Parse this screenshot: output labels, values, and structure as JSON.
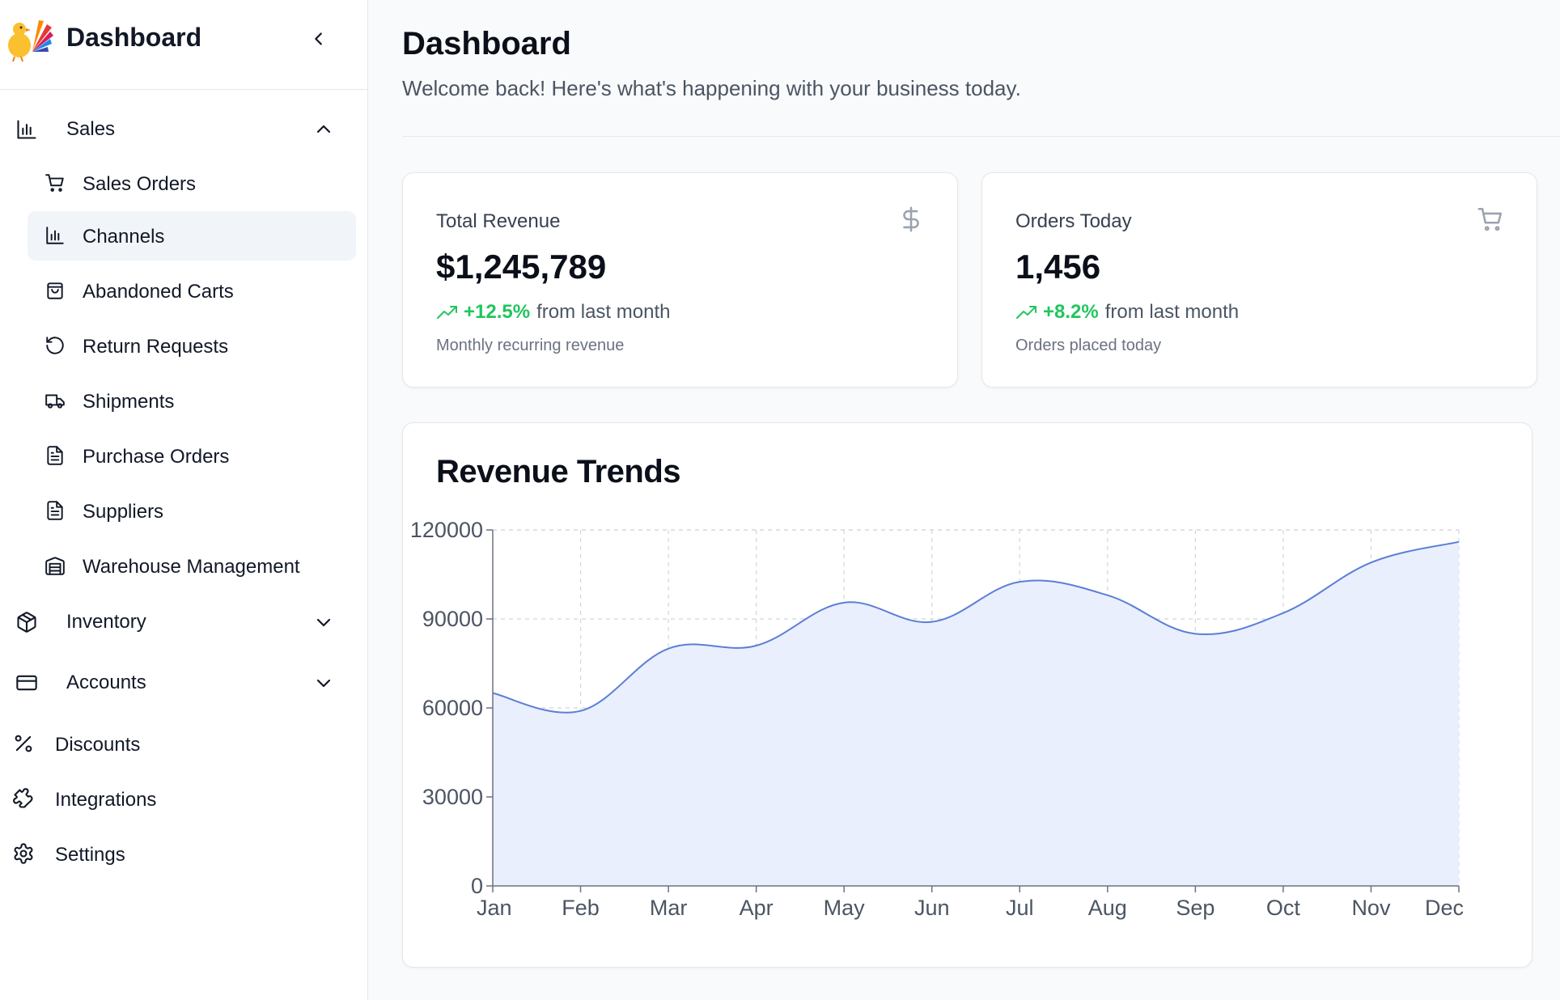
{
  "sidebar": {
    "title": "Dashboard",
    "groups": {
      "sales": {
        "label": "Sales",
        "items": [
          {
            "label": "Sales Orders",
            "icon": "cart-icon"
          },
          {
            "label": "Channels",
            "icon": "bar-chart-icon",
            "active": true
          },
          {
            "label": "Abandoned Carts",
            "icon": "bag-icon"
          },
          {
            "label": "Return Requests",
            "icon": "rotate-ccw-icon"
          },
          {
            "label": "Shipments",
            "icon": "truck-icon"
          },
          {
            "label": "Purchase Orders",
            "icon": "file-text-icon"
          },
          {
            "label": "Suppliers",
            "icon": "file-text-icon"
          },
          {
            "label": "Warehouse Management",
            "icon": "warehouse-icon"
          }
        ]
      },
      "inventory": {
        "label": "Inventory"
      },
      "accounts": {
        "label": "Accounts"
      }
    },
    "links": {
      "discounts": "Discounts",
      "integrations": "Integrations",
      "settings": "Settings"
    }
  },
  "header": {
    "title": "Dashboard",
    "subtitle": "Welcome back! Here's what's happening with your business today."
  },
  "kpis": [
    {
      "title": "Total Revenue",
      "icon": "dollar-icon",
      "value": "$1,245,789",
      "change": "+12.5%",
      "trend_text": "from last month",
      "description": "Monthly recurring revenue"
    },
    {
      "title": "Orders Today",
      "icon": "cart-icon",
      "value": "1,456",
      "change": "+8.2%",
      "trend_text": "from last month",
      "description": "Orders placed today"
    }
  ],
  "colors": {
    "accent_line": "#5b7fd6",
    "area_fill": "#eaeffd",
    "positive": "#22c55e"
  },
  "chart_title": "Revenue Trends",
  "chart_data": {
    "type": "area",
    "title": "Revenue Trends",
    "categories": [
      "Jan",
      "Feb",
      "Mar",
      "Apr",
      "May",
      "Jun",
      "Jul",
      "Aug",
      "Sep",
      "Oct",
      "Nov",
      "Dec"
    ],
    "values": [
      65000,
      59000,
      80000,
      81000,
      95500,
      89000,
      102500,
      98000,
      85000,
      92000,
      109000,
      116000
    ],
    "ylim": [
      0,
      120000
    ],
    "yticks": [
      0,
      30000,
      60000,
      90000,
      120000
    ],
    "grid": true
  }
}
